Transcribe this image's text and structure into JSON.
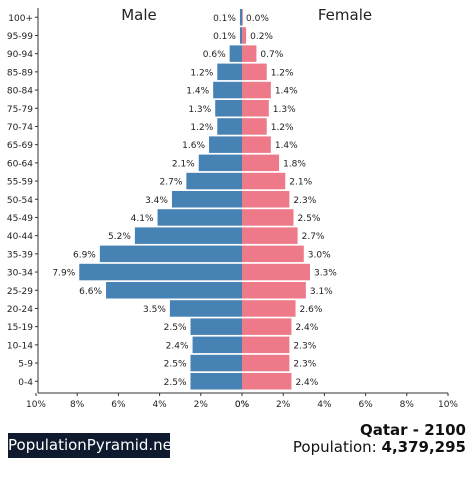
{
  "chart_data": {
    "type": "bar",
    "orientation": "horizontal-pyramid",
    "left_label": "Male",
    "right_label": "Female",
    "categories": [
      "100+",
      "95-99",
      "90-94",
      "85-89",
      "80-84",
      "75-79",
      "70-74",
      "65-69",
      "60-64",
      "55-59",
      "50-54",
      "45-49",
      "40-44",
      "35-39",
      "30-34",
      "25-29",
      "20-24",
      "15-19",
      "10-14",
      "5-9",
      "0-4"
    ],
    "series": [
      {
        "name": "Male",
        "color": "#4682b4",
        "values": [
          0.1,
          0.1,
          0.6,
          1.2,
          1.4,
          1.3,
          1.2,
          1.6,
          2.1,
          2.7,
          3.4,
          4.1,
          5.2,
          6.9,
          7.9,
          6.6,
          3.5,
          2.5,
          2.4,
          2.5,
          2.5
        ],
        "labels": [
          "0.1%",
          "0.1%",
          "0.6%",
          "1.2%",
          "1.4%",
          "1.3%",
          "1.2%",
          "1.6%",
          "2.1%",
          "2.7%",
          "3.4%",
          "4.1%",
          "5.2%",
          "6.9%",
          "7.9%",
          "6.6%",
          "3.5%",
          "2.5%",
          "2.4%",
          "2.5%",
          "2.5%"
        ]
      },
      {
        "name": "Female",
        "color": "#ee7989",
        "values": [
          0.0,
          0.2,
          0.7,
          1.2,
          1.4,
          1.3,
          1.2,
          1.4,
          1.8,
          2.1,
          2.3,
          2.5,
          2.7,
          3.0,
          3.3,
          3.1,
          2.6,
          2.4,
          2.3,
          2.3,
          2.4
        ],
        "labels": [
          "0.0%",
          "0.2%",
          "0.7%",
          "1.2%",
          "1.4%",
          "1.3%",
          "1.2%",
          "1.4%",
          "1.8%",
          "2.1%",
          "2.3%",
          "2.5%",
          "2.7%",
          "3.0%",
          "3.3%",
          "3.1%",
          "2.6%",
          "2.4%",
          "2.3%",
          "2.3%",
          "2.4%"
        ]
      }
    ],
    "xlim": [
      0,
      10
    ],
    "x_ticks_left": [
      "10%",
      "8%",
      "6%",
      "4%",
      "2%",
      "0%"
    ],
    "x_ticks_right": [
      "0%",
      "2%",
      "4%",
      "6%",
      "8%",
      "10%"
    ],
    "grid": false
  },
  "brand": "PopulationPyramid.net",
  "info": {
    "title": "Qatar - 2100",
    "population_label": "Population:",
    "population_value": "4,379,295"
  }
}
